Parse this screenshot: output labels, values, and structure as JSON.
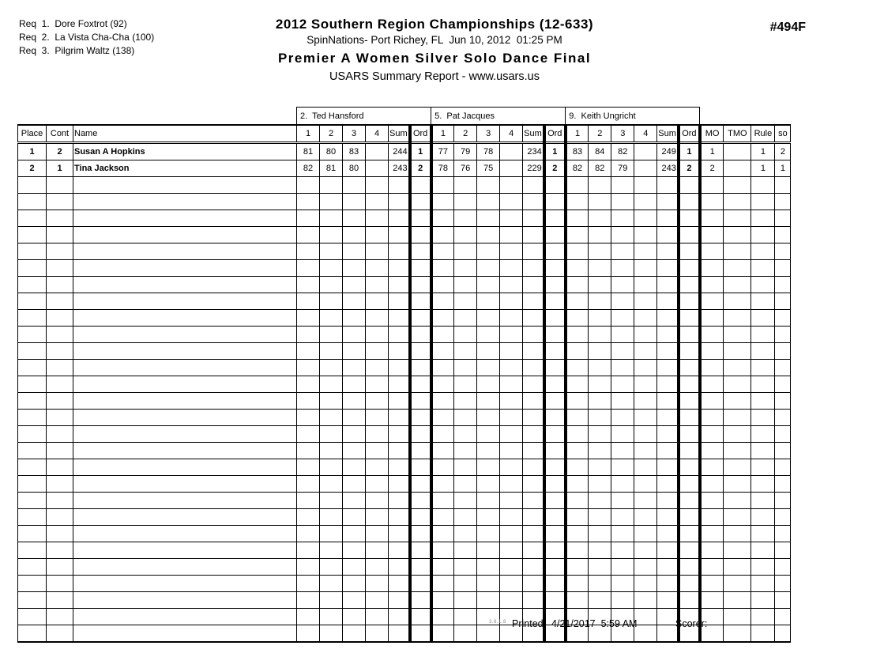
{
  "page": {
    "event_number": "#494F",
    "requirements": [
      "Req  1.  Dore Foxtrot (92)",
      "Req  2.  La Vista Cha-Cha (100)",
      "Req  3.  Pilgrim Waltz (138)"
    ],
    "title": "2012 Southern Region Championships (12-633)",
    "subtitle": "SpinNations- Port Richey, FL  Jun 10, 2012  01:25 PM",
    "event_title": "Premier A Women Silver Solo Dance Final",
    "report_title": "USARS Summary Report - www.usars.us"
  },
  "table": {
    "judges": [
      {
        "label": "2.  Ted Hansford"
      },
      {
        "label": "5.  Pat Jacques"
      },
      {
        "label": "9.  Keith Ungricht"
      }
    ],
    "columns_left": [
      "Place",
      "Cont",
      "Name"
    ],
    "judge_columns": [
      "1",
      "2",
      "3",
      "4",
      "Sum",
      "Ord"
    ],
    "columns_right": [
      "MO",
      "TMO",
      "Rule",
      "so"
    ],
    "rows": [
      {
        "place": "1",
        "cont": "2",
        "name": "Susan A Hopkins",
        "judges": [
          {
            "scores": [
              "81",
              "80",
              "83",
              ""
            ],
            "sum": "244",
            "ord": "1"
          },
          {
            "scores": [
              "77",
              "79",
              "78",
              ""
            ],
            "sum": "234",
            "ord": "1"
          },
          {
            "scores": [
              "83",
              "84",
              "82",
              ""
            ],
            "sum": "249",
            "ord": "1"
          }
        ],
        "mo": "1",
        "tmo": "",
        "rule": "1",
        "so": "2"
      },
      {
        "place": "2",
        "cont": "1",
        "name": "Tina Jackson",
        "judges": [
          {
            "scores": [
              "82",
              "81",
              "80",
              ""
            ],
            "sum": "243",
            "ord": "2"
          },
          {
            "scores": [
              "78",
              "76",
              "75",
              ""
            ],
            "sum": "229",
            "ord": "2"
          },
          {
            "scores": [
              "82",
              "82",
              "79",
              ""
            ],
            "sum": "243",
            "ord": "2"
          }
        ],
        "mo": "2",
        "tmo": "",
        "rule": "1",
        "so": "1"
      }
    ],
    "empty_row_count": 28
  },
  "footer": {
    "version": "3.8.1.8",
    "printed_label": "Printed:  4/21/2017  5:59 AM",
    "scorer_label": "Scorer:"
  }
}
